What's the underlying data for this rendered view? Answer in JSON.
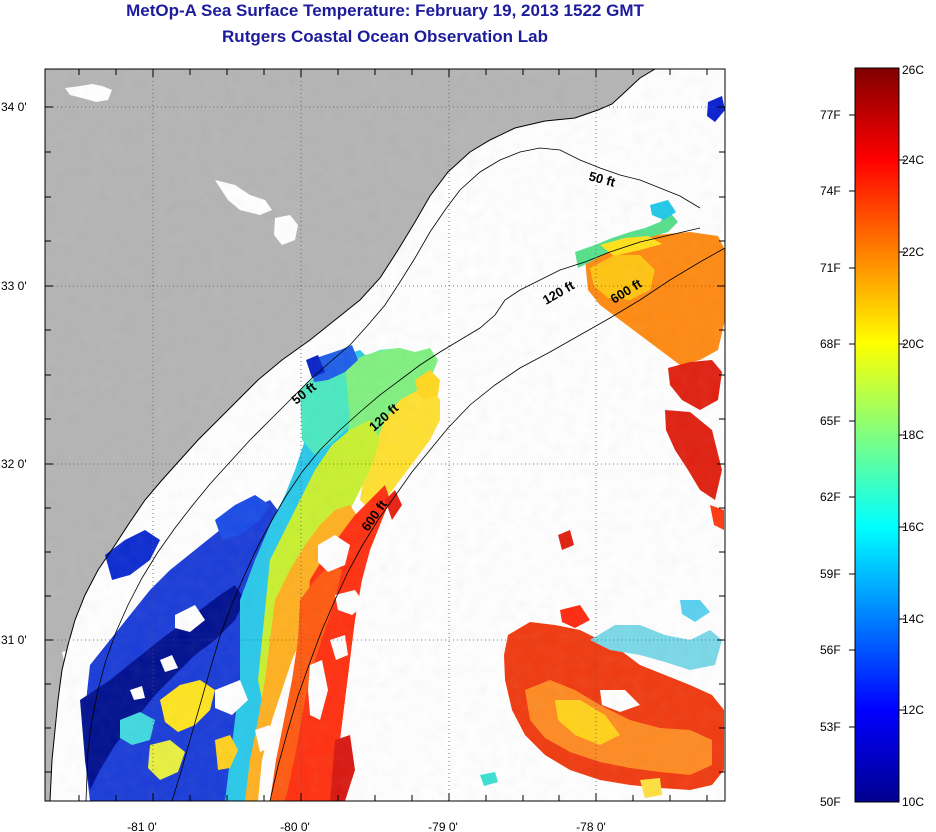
{
  "header": {
    "title": "MetOp-A Sea Surface Temperature:  February 19, 2013 1522 GMT",
    "subtitle": "Rutgers Coastal Ocean Observation Lab"
  },
  "map": {
    "lon_ticks": [
      "-81 0'",
      "-80 0'",
      "-79 0'",
      "-78 0'"
    ],
    "lat_ticks": [
      "34 0'",
      "33 0'",
      "32 0'",
      "31 0'"
    ],
    "lon_range": [
      -81.7,
      -77.0
    ],
    "lat_range": [
      30.15,
      34.2
    ],
    "contour_labels": [
      "50 ft",
      "120 ft",
      "600 ft",
      "50 ft",
      "120 ft",
      "600 ft"
    ],
    "colors": {
      "land": "#b4b4b4",
      "cloud": "#ffffff"
    }
  },
  "colorbar": {
    "f_labels": [
      "77F",
      "74F",
      "71F",
      "68F",
      "65F",
      "62F",
      "59F",
      "56F",
      "53F",
      "50F"
    ],
    "c_labels": [
      "26C",
      "24C",
      "22C",
      "20C",
      "18C",
      "16C",
      "14C",
      "12C",
      "10C"
    ],
    "range_c": [
      10,
      26
    ],
    "colormap": "jet"
  }
}
